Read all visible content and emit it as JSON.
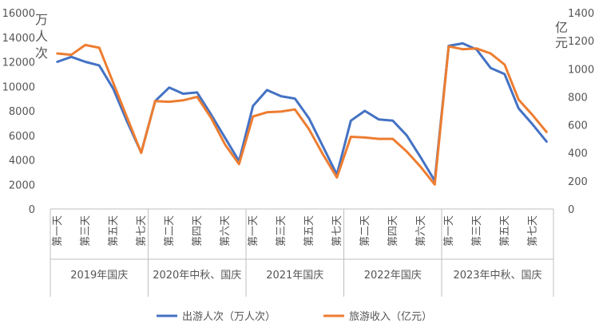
{
  "chart_data": {
    "type": "line",
    "title": "",
    "y_left": {
      "unit_label": [
        "万",
        "人",
        "次"
      ],
      "range": [
        0,
        16000
      ],
      "ticks": [
        0,
        2000,
        4000,
        6000,
        8000,
        10000,
        12000,
        14000,
        16000
      ]
    },
    "y_right": {
      "unit_label": [
        "亿",
        "元"
      ],
      "range": [
        0,
        1400
      ],
      "ticks": [
        0,
        200,
        400,
        600,
        800,
        1000,
        1200,
        1400
      ]
    },
    "x_day_labels": [
      "第一天",
      "",
      "第三天",
      "",
      "第五天",
      "",
      "第七天",
      "",
      "第二天",
      "",
      "第四天",
      "",
      "第六天",
      "",
      "第一天",
      "",
      "第三天",
      "",
      "第五天",
      "",
      "第七天",
      "",
      "第二天",
      "",
      "第四天",
      "",
      "第六天",
      "",
      "第一天",
      "",
      "第三天",
      "",
      "第五天",
      "",
      "第七天",
      ""
    ],
    "groups": [
      {
        "label": "2019年国庆",
        "start": 0,
        "count": 7
      },
      {
        "label": "2020年中秋、国庆",
        "start": 7,
        "count": 7
      },
      {
        "label": "2021年国庆",
        "start": 14,
        "count": 7
      },
      {
        "label": "2022年国庆",
        "start": 21,
        "count": 7
      },
      {
        "label": "2023年中秋、国庆",
        "start": 28,
        "count": 8
      }
    ],
    "series": [
      {
        "name": "出游人次（万人次）",
        "axis": "left",
        "color": "#4472c4",
        "values": [
          12000,
          12400,
          12000,
          11700,
          9800,
          7100,
          4600,
          8800,
          9900,
          9400,
          9500,
          7700,
          5800,
          3900,
          8400,
          9700,
          9200,
          9000,
          7400,
          5100,
          2800,
          7200,
          8000,
          7300,
          7200,
          6000,
          4200,
          2300,
          13300,
          13500,
          13000,
          11500,
          11000,
          8200,
          6900,
          5500
        ]
      },
      {
        "name": "旅游收入（亿元）",
        "axis": "right",
        "color": "#ed7d31",
        "values": [
          1110,
          1100,
          1170,
          1150,
          900,
          650,
          400,
          770,
          765,
          775,
          800,
          650,
          460,
          320,
          660,
          690,
          695,
          710,
          570,
          390,
          225,
          515,
          510,
          500,
          500,
          410,
          300,
          175,
          1160,
          1140,
          1145,
          1110,
          1030,
          780,
          670,
          550
        ]
      }
    ],
    "legend_position": "bottom"
  }
}
